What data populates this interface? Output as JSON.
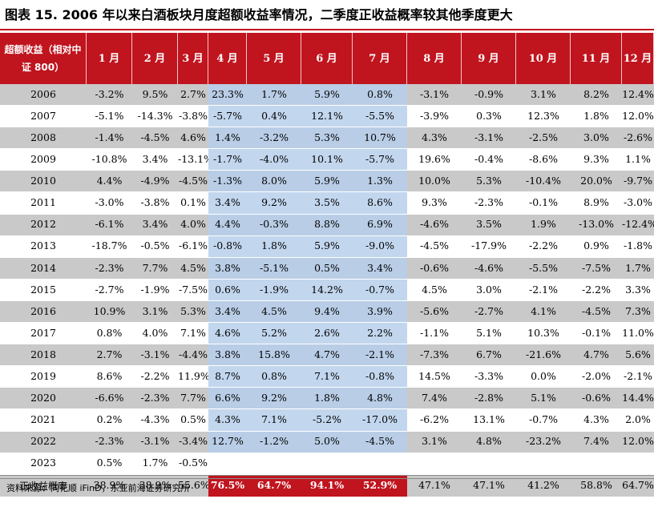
{
  "title": "图表 15. 2006 年以来白酒板块月度超额收益率情况，二季度正收益概率较其他季度更大",
  "header": {
    "corner": "超额收益（相对中证 800）",
    "months": [
      "1 月",
      "2 月",
      "3 月",
      "4 月",
      "5 月",
      "6 月",
      "7 月",
      "8 月",
      "9 月",
      "10 月",
      "11 月",
      "12 月"
    ]
  },
  "rows": [
    {
      "year": "2006",
      "v": [
        "-3.2%",
        "9.5%",
        "2.7%",
        "23.3%",
        "1.7%",
        "5.9%",
        "0.8%",
        "-3.1%",
        "-0.9%",
        "3.1%",
        "8.2%",
        "12.4%"
      ]
    },
    {
      "year": "2007",
      "v": [
        "-5.1%",
        "-14.3%",
        "-3.8%",
        "-5.7%",
        "0.4%",
        "12.1%",
        "-5.5%",
        "-3.9%",
        "0.3%",
        "12.3%",
        "1.8%",
        "12.0%"
      ]
    },
    {
      "year": "2008",
      "v": [
        "-1.4%",
        "-4.5%",
        "4.6%",
        "1.4%",
        "-3.2%",
        "5.3%",
        "10.7%",
        "4.3%",
        "-3.1%",
        "-2.5%",
        "3.0%",
        "-2.6%"
      ]
    },
    {
      "year": "2009",
      "v": [
        "-10.8%",
        "3.4%",
        "-13.1%",
        "-1.7%",
        "-4.0%",
        "10.1%",
        "-5.7%",
        "19.6%",
        "-0.4%",
        "-8.6%",
        "9.3%",
        "1.1%"
      ]
    },
    {
      "year": "2010",
      "v": [
        "4.4%",
        "-4.9%",
        "-4.5%",
        "-1.3%",
        "8.0%",
        "5.9%",
        "1.3%",
        "10.0%",
        "5.3%",
        "-10.4%",
        "20.0%",
        "-9.7%"
      ]
    },
    {
      "year": "2011",
      "v": [
        "-3.0%",
        "-3.8%",
        "0.1%",
        "3.4%",
        "9.2%",
        "3.5%",
        "8.6%",
        "9.3%",
        "-2.3%",
        "-0.1%",
        "8.9%",
        "-3.0%"
      ]
    },
    {
      "year": "2012",
      "v": [
        "-6.1%",
        "3.4%",
        "4.0%",
        "4.4%",
        "-0.3%",
        "8.8%",
        "6.9%",
        "-4.6%",
        "3.5%",
        "1.9%",
        "-13.0%",
        "-12.4%"
      ]
    },
    {
      "year": "2013",
      "v": [
        "-18.7%",
        "-0.5%",
        "-6.1%",
        "-0.8%",
        "1.8%",
        "5.9%",
        "-9.0%",
        "-4.5%",
        "-17.9%",
        "-2.2%",
        "0.9%",
        "-1.8%"
      ]
    },
    {
      "year": "2014",
      "v": [
        "-2.3%",
        "7.7%",
        "4.5%",
        "3.8%",
        "-5.1%",
        "0.5%",
        "3.4%",
        "-0.6%",
        "-4.6%",
        "-5.5%",
        "-7.5%",
        "1.7%"
      ]
    },
    {
      "year": "2015",
      "v": [
        "-2.7%",
        "-1.9%",
        "-7.5%",
        "0.6%",
        "-1.9%",
        "14.2%",
        "-0.7%",
        "4.5%",
        "3.0%",
        "-2.1%",
        "-2.2%",
        "3.3%"
      ]
    },
    {
      "year": "2016",
      "v": [
        "10.9%",
        "3.1%",
        "5.3%",
        "3.4%",
        "4.5%",
        "9.4%",
        "3.9%",
        "-5.6%",
        "-2.7%",
        "4.1%",
        "-4.5%",
        "7.3%"
      ]
    },
    {
      "year": "2017",
      "v": [
        "0.8%",
        "4.0%",
        "7.1%",
        "4.6%",
        "5.2%",
        "2.6%",
        "2.2%",
        "-1.1%",
        "5.1%",
        "10.3%",
        "-0.1%",
        "11.0%"
      ]
    },
    {
      "year": "2018",
      "v": [
        "2.7%",
        "-3.1%",
        "-4.4%",
        "3.8%",
        "15.8%",
        "4.7%",
        "-2.1%",
        "-7.3%",
        "6.7%",
        "-21.6%",
        "4.7%",
        "5.6%"
      ]
    },
    {
      "year": "2019",
      "v": [
        "8.6%",
        "-2.2%",
        "11.9%",
        "8.7%",
        "0.8%",
        "7.1%",
        "-0.8%",
        "14.5%",
        "-3.3%",
        "0.0%",
        "-2.0%",
        "-2.1%"
      ]
    },
    {
      "year": "2020",
      "v": [
        "-6.6%",
        "-2.3%",
        "7.7%",
        "6.6%",
        "9.2%",
        "1.8%",
        "4.8%",
        "7.4%",
        "-2.8%",
        "5.1%",
        "-0.6%",
        "14.4%"
      ]
    },
    {
      "year": "2021",
      "v": [
        "0.2%",
        "-4.3%",
        "0.5%",
        "4.3%",
        "7.1%",
        "-5.2%",
        "-17.0%",
        "-6.2%",
        "13.1%",
        "-0.7%",
        "4.3%",
        "2.0%"
      ]
    },
    {
      "year": "2022",
      "v": [
        "-2.3%",
        "-3.1%",
        "-3.4%",
        "12.7%",
        "-1.2%",
        "5.0%",
        "-4.5%",
        "3.1%",
        "4.8%",
        "-23.2%",
        "7.4%",
        "12.0%"
      ]
    },
    {
      "year": "2023",
      "v": [
        "0.5%",
        "1.7%",
        "-0.5%",
        "",
        "",
        "",
        "",
        "",
        "",
        "",
        "",
        ""
      ]
    }
  ],
  "summary": {
    "label": "正收益概率",
    "v": [
      "38.9%",
      "38.9%",
      "55.6%",
      "76.5%",
      "64.7%",
      "94.1%",
      "52.9%",
      "47.1%",
      "47.1%",
      "41.2%",
      "58.8%",
      "64.7%"
    ]
  },
  "source": "资料来源：同花顺 iFinD，东亚前海证券研究所",
  "colors": {
    "accent_red": "#c0141e",
    "q2_blue": "#c2d6ee",
    "row_gray": "#c9c9c9"
  }
}
